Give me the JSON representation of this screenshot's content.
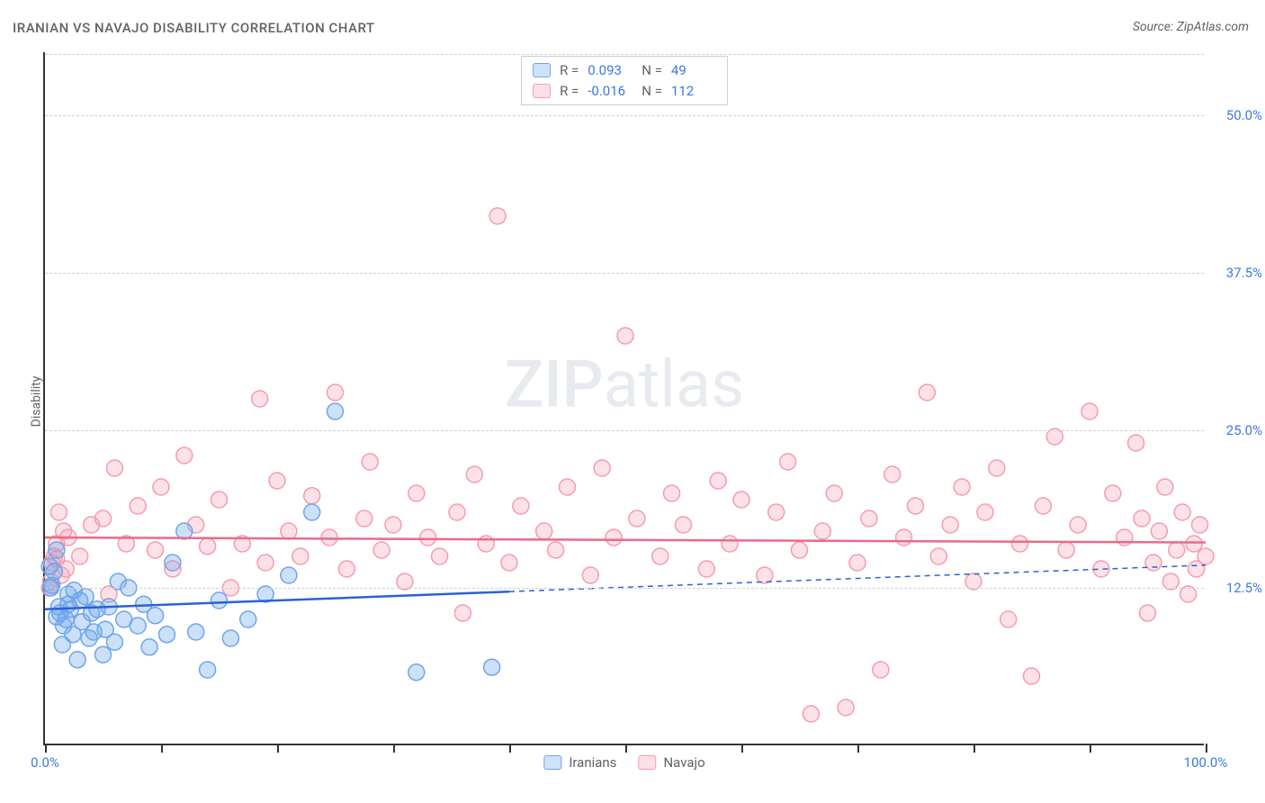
{
  "title": "IRANIAN VS NAVAJO DISABILITY CORRELATION CHART",
  "source": "Source: ZipAtlas.com",
  "watermark_a": "ZIP",
  "watermark_b": "atlas",
  "y_axis_label": "Disability",
  "chart": {
    "type": "scatter",
    "xlim": [
      0,
      100
    ],
    "ylim": [
      0,
      55
    ],
    "y_ticks": [
      12.5,
      25.0,
      37.5,
      50.0
    ],
    "y_tick_labels": [
      "12.5%",
      "25.0%",
      "37.5%",
      "50.0%"
    ],
    "x_ticks": [
      0,
      10,
      20,
      30,
      40,
      50,
      60,
      70,
      80,
      90,
      100
    ],
    "x_end_labels": {
      "min": "0.0%",
      "max": "100.0%"
    },
    "background_color": "#ffffff",
    "grid_color": "#d0d0d0",
    "axis_label_color": "#3b78e7",
    "marker_radius": 9,
    "marker_stroke_width": 1.5,
    "trend_line_width": 2.5,
    "series": [
      {
        "name": "Iranians",
        "fill": "rgba(110,165,235,0.35)",
        "stroke": "#6ea5eb",
        "swatch_fill": "#cfe2fb",
        "swatch_stroke": "#6ea5eb",
        "trend_color": "#2a62d6",
        "r_value": "0.093",
        "n_value": "49",
        "trend_solid_x_end": 40,
        "trend_y_start": 10.8,
        "trend_y_end": 14.3,
        "points": [
          [
            0.4,
            14.2
          ],
          [
            0.5,
            12.5
          ],
          [
            0.6,
            12.7
          ],
          [
            0.8,
            13.8
          ],
          [
            1.0,
            15.5
          ],
          [
            1.0,
            10.2
          ],
          [
            1.2,
            11.0
          ],
          [
            1.3,
            10.5
          ],
          [
            1.5,
            8.0
          ],
          [
            1.6,
            9.5
          ],
          [
            1.8,
            10.0
          ],
          [
            2.0,
            12.0
          ],
          [
            2.0,
            11.2
          ],
          [
            2.2,
            10.8
          ],
          [
            2.4,
            8.8
          ],
          [
            2.5,
            12.3
          ],
          [
            2.8,
            6.8
          ],
          [
            3.0,
            11.5
          ],
          [
            3.2,
            9.8
          ],
          [
            3.5,
            11.8
          ],
          [
            3.8,
            8.5
          ],
          [
            4.0,
            10.5
          ],
          [
            4.2,
            9.0
          ],
          [
            4.5,
            10.8
          ],
          [
            5.0,
            7.2
          ],
          [
            5.2,
            9.2
          ],
          [
            5.5,
            11.0
          ],
          [
            6.0,
            8.2
          ],
          [
            6.3,
            13.0
          ],
          [
            6.8,
            10.0
          ],
          [
            7.2,
            12.5
          ],
          [
            8.0,
            9.5
          ],
          [
            8.5,
            11.2
          ],
          [
            9.0,
            7.8
          ],
          [
            9.5,
            10.3
          ],
          [
            10.5,
            8.8
          ],
          [
            11.0,
            14.5
          ],
          [
            12.0,
            17.0
          ],
          [
            13.0,
            9.0
          ],
          [
            14.0,
            6.0
          ],
          [
            15.0,
            11.5
          ],
          [
            16.0,
            8.5
          ],
          [
            17.5,
            10.0
          ],
          [
            19.0,
            12.0
          ],
          [
            21.0,
            13.5
          ],
          [
            23.0,
            18.5
          ],
          [
            25.0,
            26.5
          ],
          [
            32.0,
            5.8
          ],
          [
            38.5,
            6.2
          ]
        ]
      },
      {
        "name": "Navajo",
        "fill": "rgba(245,155,175,0.30)",
        "stroke": "#f59baf",
        "swatch_fill": "#fce0e7",
        "swatch_stroke": "#f59baf",
        "trend_color": "#e86b8a",
        "r_value": "-0.016",
        "n_value": "112",
        "trend_solid_x_end": 100,
        "trend_y_start": 16.5,
        "trend_y_end": 16.1,
        "points": [
          [
            0.4,
            12.5
          ],
          [
            0.5,
            13.0
          ],
          [
            0.6,
            14.5
          ],
          [
            0.8,
            15.0
          ],
          [
            1.0,
            14.8
          ],
          [
            1.0,
            16.0
          ],
          [
            1.2,
            18.5
          ],
          [
            1.4,
            13.5
          ],
          [
            1.6,
            17.0
          ],
          [
            1.8,
            14.0
          ],
          [
            2.0,
            16.5
          ],
          [
            3.0,
            15.0
          ],
          [
            4.0,
            17.5
          ],
          [
            5.0,
            18.0
          ],
          [
            5.5,
            12.0
          ],
          [
            6.0,
            22.0
          ],
          [
            7.0,
            16.0
          ],
          [
            8.0,
            19.0
          ],
          [
            9.5,
            15.5
          ],
          [
            10.0,
            20.5
          ],
          [
            11.0,
            14.0
          ],
          [
            12.0,
            23.0
          ],
          [
            13.0,
            17.5
          ],
          [
            14.0,
            15.8
          ],
          [
            15.0,
            19.5
          ],
          [
            16.0,
            12.5
          ],
          [
            17.0,
            16.0
          ],
          [
            18.5,
            27.5
          ],
          [
            19.0,
            14.5
          ],
          [
            20.0,
            21.0
          ],
          [
            21.0,
            17.0
          ],
          [
            22.0,
            15.0
          ],
          [
            23.0,
            19.8
          ],
          [
            24.5,
            16.5
          ],
          [
            25.0,
            28.0
          ],
          [
            26.0,
            14.0
          ],
          [
            27.5,
            18.0
          ],
          [
            28.0,
            22.5
          ],
          [
            29.0,
            15.5
          ],
          [
            30.0,
            17.5
          ],
          [
            31.0,
            13.0
          ],
          [
            32.0,
            20.0
          ],
          [
            33.0,
            16.5
          ],
          [
            34.0,
            15.0
          ],
          [
            35.5,
            18.5
          ],
          [
            36.0,
            10.5
          ],
          [
            37.0,
            21.5
          ],
          [
            38.0,
            16.0
          ],
          [
            39.0,
            42.0
          ],
          [
            40.0,
            14.5
          ],
          [
            41.0,
            19.0
          ],
          [
            43.0,
            17.0
          ],
          [
            44.0,
            15.5
          ],
          [
            45.0,
            20.5
          ],
          [
            47.0,
            13.5
          ],
          [
            48.0,
            22.0
          ],
          [
            49.0,
            16.5
          ],
          [
            50.0,
            32.5
          ],
          [
            51.0,
            18.0
          ],
          [
            53.0,
            15.0
          ],
          [
            54.0,
            20.0
          ],
          [
            55.0,
            17.5
          ],
          [
            57.0,
            14.0
          ],
          [
            58.0,
            21.0
          ],
          [
            59.0,
            16.0
          ],
          [
            60.0,
            19.5
          ],
          [
            62.0,
            13.5
          ],
          [
            63.0,
            18.5
          ],
          [
            64.0,
            22.5
          ],
          [
            65.0,
            15.5
          ],
          [
            66.0,
            2.5
          ],
          [
            67.0,
            17.0
          ],
          [
            68.0,
            20.0
          ],
          [
            69.0,
            3.0
          ],
          [
            70.0,
            14.5
          ],
          [
            71.0,
            18.0
          ],
          [
            72.0,
            6.0
          ],
          [
            73.0,
            21.5
          ],
          [
            74.0,
            16.5
          ],
          [
            75.0,
            19.0
          ],
          [
            76.0,
            28.0
          ],
          [
            77.0,
            15.0
          ],
          [
            78.0,
            17.5
          ],
          [
            79.0,
            20.5
          ],
          [
            80.0,
            13.0
          ],
          [
            81.0,
            18.5
          ],
          [
            82.0,
            22.0
          ],
          [
            83.0,
            10.0
          ],
          [
            84.0,
            16.0
          ],
          [
            85.0,
            5.5
          ],
          [
            86.0,
            19.0
          ],
          [
            87.0,
            24.5
          ],
          [
            88.0,
            15.5
          ],
          [
            89.0,
            17.5
          ],
          [
            90.0,
            26.5
          ],
          [
            91.0,
            14.0
          ],
          [
            92.0,
            20.0
          ],
          [
            93.0,
            16.5
          ],
          [
            94.0,
            24.0
          ],
          [
            94.5,
            18.0
          ],
          [
            95.0,
            10.5
          ],
          [
            95.5,
            14.5
          ],
          [
            96.0,
            17.0
          ],
          [
            96.5,
            20.5
          ],
          [
            97.0,
            13.0
          ],
          [
            97.5,
            15.5
          ],
          [
            98.0,
            18.5
          ],
          [
            98.5,
            12.0
          ],
          [
            99.0,
            16.0
          ],
          [
            99.2,
            14.0
          ],
          [
            99.5,
            17.5
          ],
          [
            100.0,
            15.0
          ]
        ]
      }
    ]
  },
  "legend_top": {
    "r_label": "R =",
    "n_label": "N ="
  }
}
